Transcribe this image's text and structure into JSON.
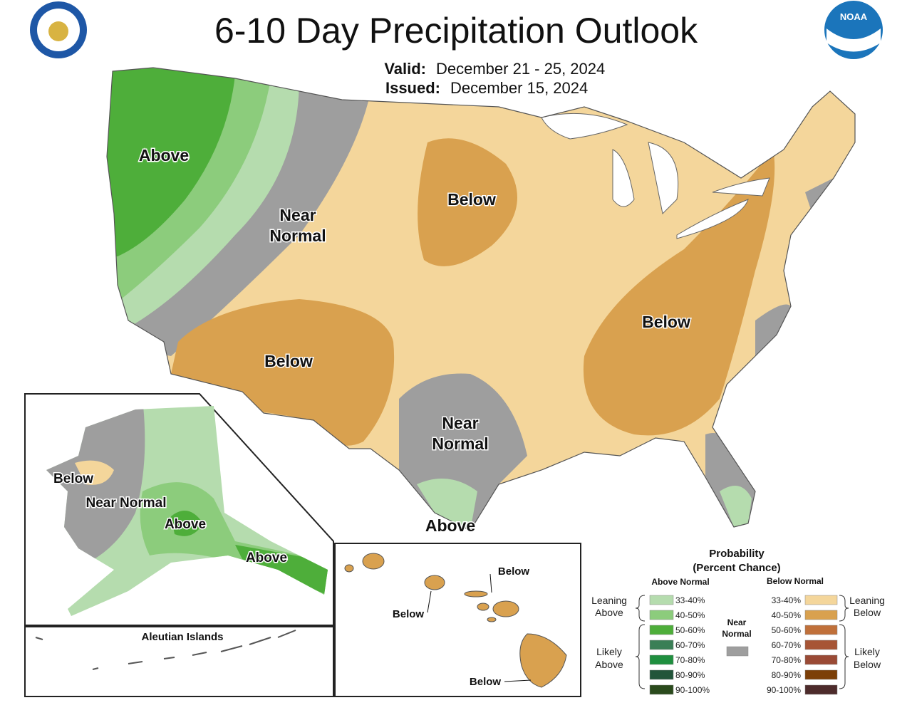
{
  "header": {
    "title": "6-10 Day Precipitation Outlook",
    "valid_label": "Valid:",
    "valid_dates": "December 21 - 25, 2024",
    "issued_label": "Issued:",
    "issued_date": "December 15, 2024",
    "logo_text": "NOAA"
  },
  "conus_labels": [
    "Above",
    "Near Normal",
    "Below",
    "Below",
    "Below",
    "Near Normal",
    "Above"
  ],
  "alaska_labels": [
    "Below",
    "Near Normal",
    "Above",
    "Above"
  ],
  "aleutian_title": "Aleutian Islands",
  "hawaii_labels": [
    "Below",
    "Below",
    "Below"
  ],
  "legend": {
    "title": "Probability",
    "subtitle": "(Percent Chance)",
    "above_heading": "Above Normal",
    "below_heading": "Below Normal",
    "leaning_above": [
      "Leaning",
      "Above"
    ],
    "likely_above": [
      "Likely",
      "Above"
    ],
    "near": [
      "Near",
      "Normal"
    ],
    "leaning_below": [
      "Leaning",
      "Below"
    ],
    "likely_below": [
      "Likely",
      "Below"
    ],
    "near_color": "#9e9e9e",
    "above": [
      {
        "label": "33-40%",
        "color": "#b5dcae"
      },
      {
        "label": "40-50%",
        "color": "#8ccc7c"
      },
      {
        "label": "50-60%",
        "color": "#4eae3a"
      },
      {
        "label": "60-70%",
        "color": "#3a7f56"
      },
      {
        "label": "70-80%",
        "color": "#1f8f3f"
      },
      {
        "label": "80-90%",
        "color": "#22553a"
      },
      {
        "label": "90-100%",
        "color": "#2a4a1c"
      }
    ],
    "below": [
      {
        "label": "33-40%",
        "color": "#f4d69b"
      },
      {
        "label": "40-50%",
        "color": "#d9a14f"
      },
      {
        "label": "50-60%",
        "color": "#c0703a"
      },
      {
        "label": "60-70%",
        "color": "#a75535"
      },
      {
        "label": "70-80%",
        "color": "#9a4a35"
      },
      {
        "label": "80-90%",
        "color": "#7c3f07"
      },
      {
        "label": "90-100%",
        "color": "#4d2b2b"
      }
    ]
  }
}
